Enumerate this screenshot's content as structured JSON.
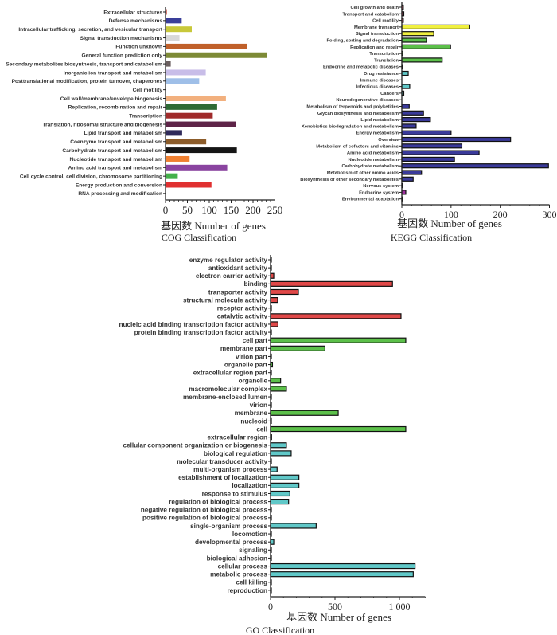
{
  "chart_data": [
    {
      "type": "bar",
      "orientation": "horizontal",
      "title": "COG Classification",
      "xlabel": "基因数 Number of genes",
      "xlim": [
        0,
        250
      ],
      "xticks": [
        "0",
        "50",
        "100",
        "150",
        "200",
        "250"
      ],
      "xtick_values": [
        0,
        50,
        100,
        150,
        200,
        250
      ],
      "categories": [
        "Extracellular structures",
        "Defense mechanisms",
        "Intracellular trafficking, secretion, and vesicular transport",
        "Signal transduction mechanisms",
        "Function unknown",
        "General function prediction only",
        "Secondary metabolites biosynthesis, transport and catabolism",
        "Inorganic ion transport and metabolism",
        "Posttranslational modification, protein turnover, chaperones",
        "Cell motility",
        "Cell wall/membrane/envelope biogenesis",
        "Replication, recombination and repair",
        "Transcription",
        "Translation, ribosomal structure and biogenesis",
        "Lipid transport and metabolism",
        "Coenzyme transport and metabolism",
        "Carbohydrate transport and metabolism",
        "Nucleotide transport and metabolism",
        "Amino acid transport and metabolism",
        "Cell cycle control, cell division, chromosome partitioning",
        "Energy production and conversion",
        "RNA processing and modification"
      ],
      "values": [
        3,
        37,
        60,
        32,
        186,
        232,
        12,
        92,
        77,
        0,
        138,
        118,
        108,
        161,
        38,
        93,
        163,
        55,
        141,
        28,
        105,
        0
      ],
      "colors": [
        "#c0392b",
        "#3a3f9a",
        "#c8c83a",
        "#d8d8d8",
        "#c0602a",
        "#7d8a36",
        "#6b5f5f",
        "#c8bde8",
        "#9fbfe8",
        "#999999",
        "#f2b07e",
        "#2e6b35",
        "#a02a2a",
        "#5e2448",
        "#2f2a5a",
        "#8c5c2a",
        "#151515",
        "#f08030",
        "#8a44a0",
        "#44b04a",
        "#e03030",
        "#999999"
      ]
    },
    {
      "type": "bar",
      "orientation": "horizontal",
      "title": "KEGG Classification",
      "xlabel": "基因数 Number of genes",
      "xlim": [
        0,
        300
      ],
      "xticks": [
        "0",
        "100",
        "200",
        "300"
      ],
      "xtick_values": [
        0,
        100,
        200,
        300
      ],
      "categories": [
        "Cell growth and death",
        "Transport and catabolism",
        "Cell motility",
        "Membrane transport",
        "Signal transduction",
        "Folding, sorting and degradation",
        "Replication and repair",
        "Transcription",
        "Translation",
        "Endocrine and metabolic diseases",
        "Drug resistance",
        "Immune diseases",
        "Infectious diseases",
        "Cancers",
        "Neurodegenerative diseases",
        "Metabolism of terpenoids and polyketides",
        "Glycan biosynthesis and metabolism",
        "Lipid metabolism",
        "Xenobiotics biodegradation and metabolism",
        "Energy metabolism",
        "Overview",
        "Metabolism of cofactors and vitamins",
        "Amino acid metabolism",
        "Nucleotide metabolism",
        "Carbohydrate metabolism",
        "Metabolism of other amino acids",
        "Biosynthesis of other secondary metabolites",
        "Nervous system",
        "Endocrine system",
        "Environmental adaptation"
      ],
      "values": [
        3,
        4,
        3,
        138,
        65,
        50,
        99,
        2,
        82,
        1,
        13,
        0,
        16,
        4,
        0,
        15,
        44,
        58,
        29,
        100,
        221,
        122,
        157,
        107,
        298,
        40,
        23,
        1,
        8,
        1
      ],
      "colors": [
        "#e05070",
        "#e05070",
        "#e05070",
        "#f0f040",
        "#f0f040",
        "#5cc04a",
        "#5cc04a",
        "#5cc04a",
        "#5cc04a",
        "#60c8c8",
        "#60c8c8",
        "#60c8c8",
        "#60c8c8",
        "#60c8c8",
        "#60c8c8",
        "#3a3a9a",
        "#3a3a9a",
        "#3a3a9a",
        "#3a3a9a",
        "#3a3a9a",
        "#3a3a9a",
        "#3a3a9a",
        "#3a3a9a",
        "#3a3a9a",
        "#3a3a9a",
        "#3a3a9a",
        "#3a3a9a",
        "#a030a0",
        "#a030a0",
        "#a030a0"
      ]
    },
    {
      "type": "bar",
      "orientation": "horizontal",
      "title": "GO Classification",
      "xlabel": "基因数 Number of genes",
      "xlim": [
        0,
        1200
      ],
      "xticks": [
        "0",
        "500",
        "1 000"
      ],
      "xtick_values": [
        0,
        500,
        1000
      ],
      "categories": [
        "enzyme regulator activity",
        "antioxidant activity",
        "electron carrier activity",
        "binding",
        "transporter activity",
        "structural molecule activity",
        "receptor activity",
        "catalytic activity",
        "nucleic acid binding transcription factor activity",
        "protein binding transcription factor activity",
        "cell part",
        "membrane part",
        "virion part",
        "organelle part",
        "extracellular region part",
        "organelle",
        "macromolecular complex",
        "membrane-enclosed lumen",
        "virion",
        "membrane",
        "nucleoid",
        "cell",
        "extracellular region",
        "cellular component organization or biogenesis",
        "biological regulation",
        "molecular transducer activity",
        "multi-organism process",
        "establishment of localization",
        "localization",
        "response to stimulus",
        "regulation of biological process",
        "negative regulation of biological process",
        "positive regulation of biological process",
        "single-organism process",
        "locomotion",
        "developmental process",
        "signaling",
        "biological adhesion",
        "cellular process",
        "metabolic process",
        "cell killing",
        "reproduction"
      ],
      "values": [
        1,
        2,
        25,
        946,
        216,
        55,
        5,
        1012,
        58,
        1,
        1049,
        422,
        2,
        15,
        2,
        78,
        123,
        1,
        4,
        525,
        5,
        1049,
        8,
        123,
        160,
        2,
        51,
        220,
        220,
        150,
        140,
        5,
        1,
        354,
        5,
        25,
        5,
        2,
        1121,
        1107,
        1,
        5
      ],
      "colors": [
        "#e04848",
        "#e04848",
        "#e04848",
        "#e04848",
        "#e04848",
        "#e04848",
        "#e04848",
        "#e04848",
        "#e04848",
        "#e04848",
        "#5cc04a",
        "#5cc04a",
        "#5cc04a",
        "#5cc04a",
        "#5cc04a",
        "#5cc04a",
        "#5cc04a",
        "#5cc04a",
        "#5cc04a",
        "#5cc04a",
        "#5cc04a",
        "#5cc04a",
        "#5cc04a",
        "#60c8c8",
        "#60c8c8",
        "#60c8c8",
        "#60c8c8",
        "#60c8c8",
        "#60c8c8",
        "#60c8c8",
        "#60c8c8",
        "#60c8c8",
        "#60c8c8",
        "#60c8c8",
        "#60c8c8",
        "#60c8c8",
        "#60c8c8",
        "#60c8c8",
        "#60c8c8",
        "#60c8c8",
        "#60c8c8",
        "#60c8c8"
      ]
    }
  ]
}
